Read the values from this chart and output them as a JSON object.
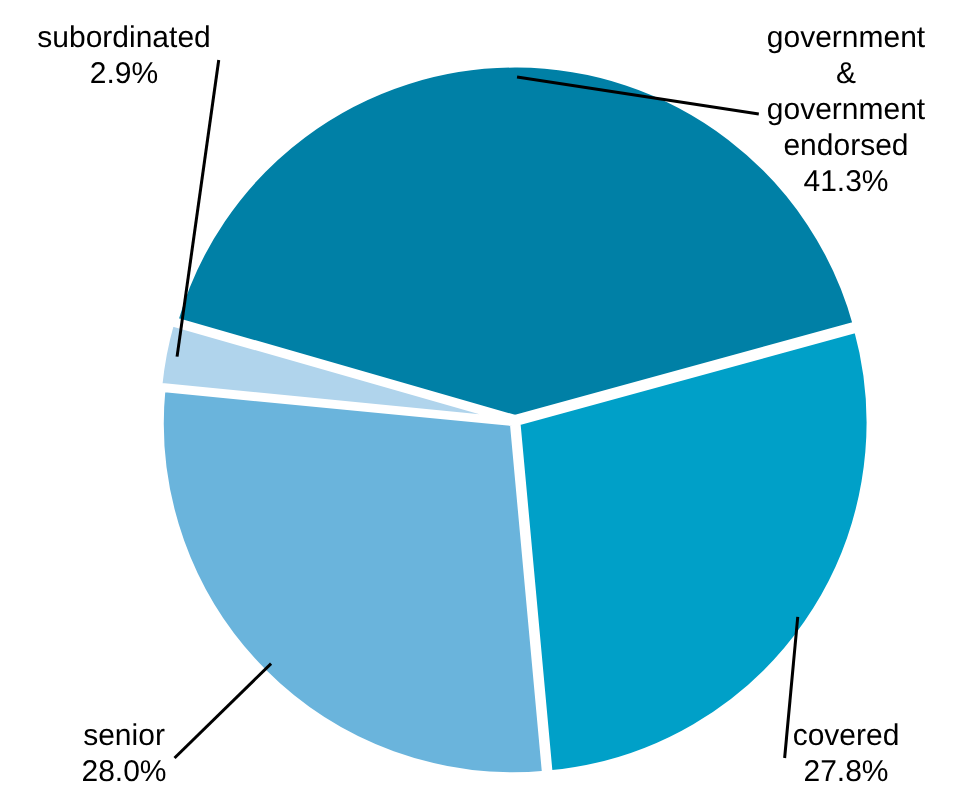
{
  "chart_data": {
    "type": "pie",
    "categories": [
      "government & government endorsed",
      "covered",
      "senior",
      "subordinated"
    ],
    "values": [
      41.3,
      27.8,
      28.0,
      2.9
    ],
    "value_labels": [
      "41.3%",
      "27.8%",
      "28.0%",
      "2.9%"
    ],
    "colors": [
      "#0080a6",
      "#00a0c8",
      "#6ab4dc",
      "#b0d4ec"
    ],
    "legend": false
  }
}
